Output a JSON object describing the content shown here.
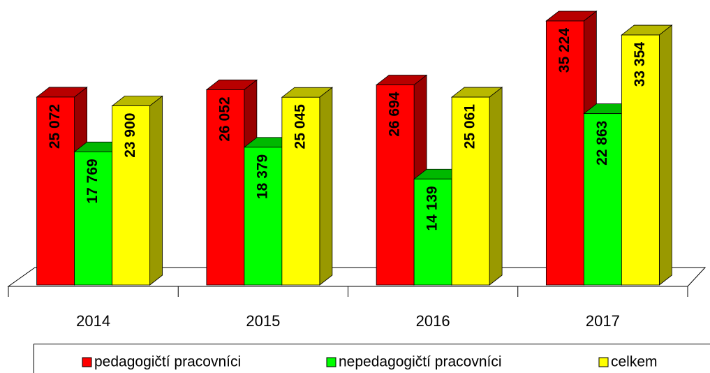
{
  "chart_data": {
    "type": "bar3d",
    "categories": [
      "2014",
      "2015",
      "2016",
      "2017"
    ],
    "series": [
      {
        "name": "pedagogičtí pracovníci",
        "color": "#ff0000",
        "values": [
          25072,
          26052,
          26694,
          35224
        ],
        "value_labels": [
          "25 072",
          "26 052",
          "26 694",
          "35 224"
        ]
      },
      {
        "name": "nepedagogičtí pracovníci",
        "color": "#00ff00",
        "values": [
          17769,
          18379,
          14139,
          22863
        ],
        "value_labels": [
          "17 769",
          "18 379",
          "14 139",
          "22 863"
        ]
      },
      {
        "name": "celkem",
        "color": "#ffff00",
        "values": [
          23900,
          25045,
          25061,
          33354
        ],
        "value_labels": [
          "23 900",
          "25 045",
          "25 061",
          "33 354"
        ]
      }
    ],
    "legend": "bottom"
  }
}
